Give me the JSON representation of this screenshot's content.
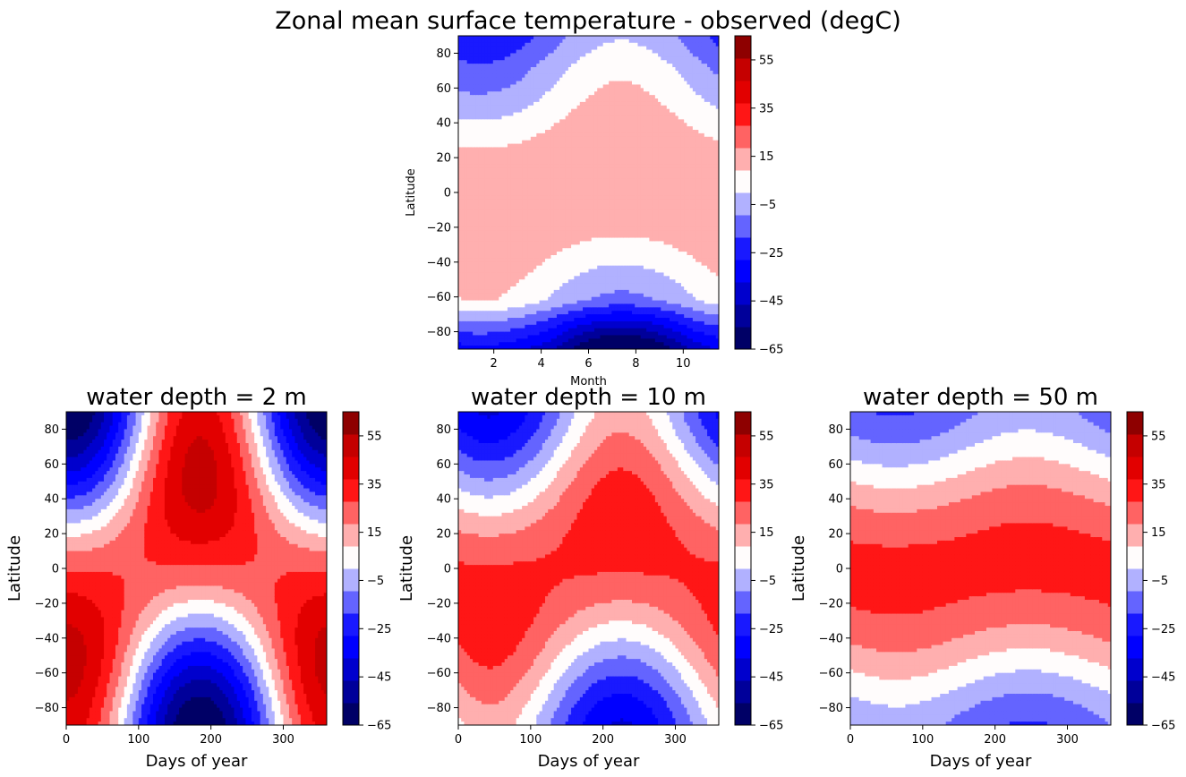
{
  "suptitle": "Zonal mean surface temperature - observed (degC)",
  "colors": {
    "levels": [
      -65,
      -55,
      -45,
      -35,
      -25,
      -15,
      -5,
      5,
      15,
      25,
      35,
      45,
      55,
      65
    ],
    "fills": [
      "#000066",
      "#00009a",
      "#0000cd",
      "#0000ff",
      "#1919ff",
      "#6464ff",
      "#b1b1ff",
      "#fffcfc",
      "#ffafaf",
      "#ff6363",
      "#ff1616",
      "#e20000",
      "#c50000",
      "#8e0000"
    ]
  },
  "chart_data": [
    {
      "id": "observed",
      "type": "heatmap",
      "title": "",
      "xlabel": "Month",
      "ylabel": "Latitude",
      "xlim": [
        0.5,
        11.5
      ],
      "ylim": [
        -90,
        90
      ],
      "xticks": [
        2,
        4,
        6,
        8,
        10
      ],
      "yticks": [
        -80,
        -60,
        -40,
        -20,
        0,
        20,
        40,
        60,
        80
      ],
      "colorbar_ticks": [
        -65,
        -45,
        -25,
        -5,
        15,
        35,
        55
      ],
      "colorbar_label": ""
    },
    {
      "id": "depth2",
      "type": "heatmap",
      "title": "water depth = 2 m",
      "xlabel": "Days of year",
      "ylabel": "Latitude",
      "xlim": [
        0,
        360
      ],
      "ylim": [
        -90,
        90
      ],
      "xticks": [
        0,
        100,
        200,
        300
      ],
      "yticks": [
        -80,
        -60,
        -40,
        -20,
        0,
        20,
        40,
        60,
        80
      ],
      "colorbar_ticks": [
        -65,
        -45,
        -25,
        -5,
        15,
        35,
        55
      ],
      "colorbar_label": ""
    },
    {
      "id": "depth10",
      "type": "heatmap",
      "title": "water depth = 10 m",
      "xlabel": "Days of year",
      "ylabel": "Latitude",
      "xlim": [
        0,
        360
      ],
      "ylim": [
        -90,
        90
      ],
      "xticks": [
        0,
        100,
        200,
        300
      ],
      "yticks": [
        -80,
        -60,
        -40,
        -20,
        0,
        20,
        40,
        60,
        80
      ],
      "colorbar_ticks": [
        -65,
        -45,
        -25,
        -5,
        15,
        35,
        55
      ],
      "colorbar_label": ""
    },
    {
      "id": "depth50",
      "type": "heatmap",
      "title": "water depth = 50 m",
      "xlabel": "Days of year",
      "ylabel": "Latitude",
      "xlim": [
        0,
        360
      ],
      "ylim": [
        -90,
        90
      ],
      "xticks": [
        0,
        100,
        200,
        300
      ],
      "yticks": [
        -80,
        -60,
        -40,
        -20,
        0,
        20,
        40,
        60,
        80
      ],
      "colorbar_ticks": [
        -65,
        -45,
        -25,
        -5,
        15,
        35,
        55
      ],
      "colorbar_label": ""
    }
  ]
}
